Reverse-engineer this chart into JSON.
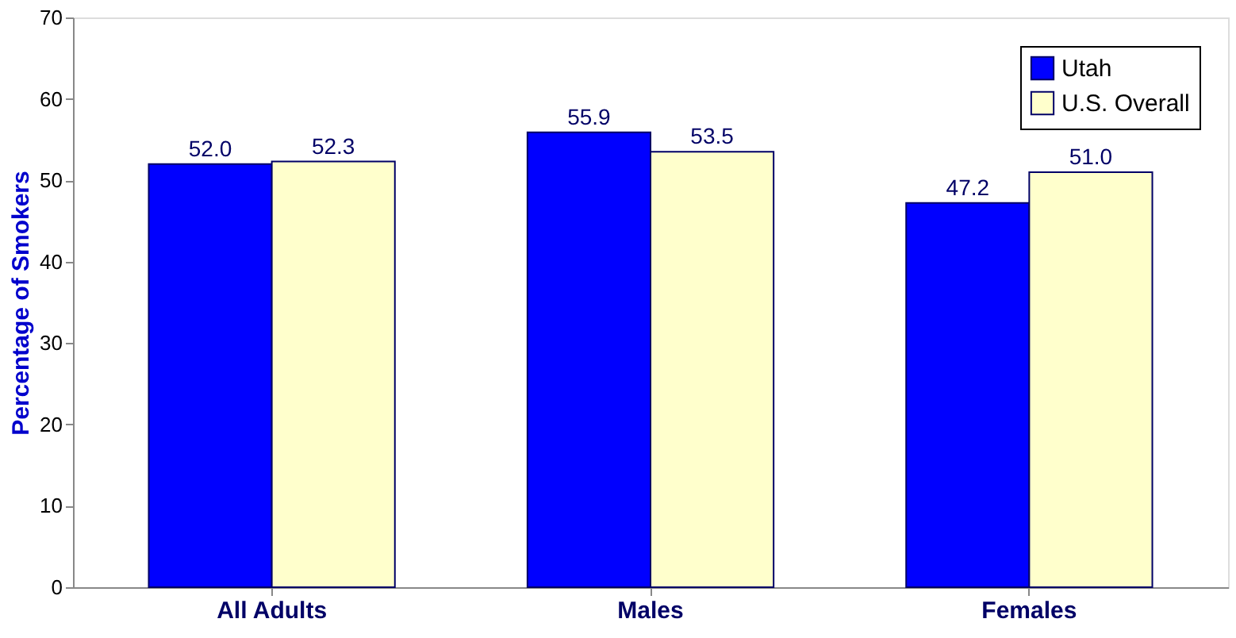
{
  "chart_data": {
    "type": "bar",
    "ylabel": "Percentage of Smokers",
    "categories": [
      "All Adults",
      "Males",
      "Females"
    ],
    "series": [
      {
        "name": "Utah",
        "color": "#0000ff",
        "values": [
          52.0,
          55.9,
          47.2
        ],
        "value_labels": [
          "52.0",
          "55.9",
          "47.2"
        ]
      },
      {
        "name": "U.S. Overall",
        "color": "#ffffcc",
        "values": [
          52.3,
          53.5,
          51.0
        ],
        "value_labels": [
          "52.3",
          "53.5",
          "51.0"
        ]
      }
    ],
    "ylim": [
      0,
      70
    ],
    "yticks": [
      0,
      10,
      20,
      30,
      40,
      50,
      60,
      70
    ],
    "grid": false,
    "legend": "top right"
  }
}
